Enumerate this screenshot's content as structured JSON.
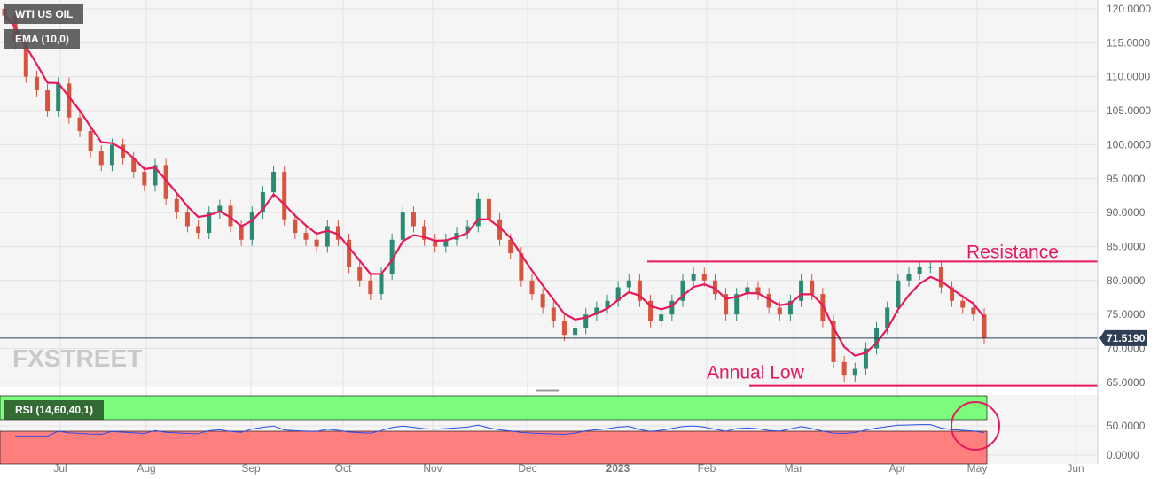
{
  "legend": {
    "symbol": "WTI US OIL",
    "ema": "EMA (10,0)",
    "rsi": "RSI (14,60,40,1)"
  },
  "watermark": "FXSTREET",
  "colors": {
    "up": "#2b8a72",
    "down": "#d9533f",
    "ema": "#e8195a",
    "rsi": "#2b4ee8",
    "annotation": "#e8195a",
    "overbought": "#7cfc7c",
    "oversold": "#ff7f7f"
  },
  "chart_data": {
    "type": "candlestick",
    "title": "WTI US OIL",
    "price_axis": {
      "ylim": [
        64,
        121
      ],
      "ticks": [
        "120.0000",
        "115.0000",
        "110.0000",
        "105.0000",
        "100.0000",
        "95.0000",
        "90.0000",
        "85.0000",
        "80.0000",
        "75.0000",
        "70.0000",
        "65.0000"
      ]
    },
    "rsi_axis": {
      "ylim": [
        0,
        100
      ],
      "ticks": [
        "50.0000",
        "0.0000"
      ],
      "upper": 60,
      "lower": 40
    },
    "x_ticks": [
      "Jul",
      "Aug",
      "Sep",
      "Oct",
      "Nov",
      "Dec",
      "2023",
      "Feb",
      "Mar",
      "Apr",
      "May",
      "Jun"
    ],
    "closes": [
      119,
      115,
      110,
      108,
      105,
      109,
      104,
      102,
      99,
      97,
      100,
      98,
      96,
      94,
      97,
      92,
      90,
      88,
      87,
      90,
      91,
      88,
      86,
      90,
      93,
      96,
      89,
      87,
      86,
      85,
      88,
      86,
      82,
      80,
      78,
      81,
      86,
      90,
      88,
      86,
      85,
      86,
      87,
      88,
      92,
      89,
      86,
      84,
      80,
      78,
      76,
      74,
      72,
      73,
      75,
      76,
      77,
      79,
      80,
      77,
      74,
      75,
      77,
      80,
      81,
      80,
      78,
      75,
      78,
      79,
      78,
      76,
      75,
      77,
      80,
      78,
      74,
      68,
      66,
      67,
      70,
      73,
      76,
      80,
      81,
      82,
      82,
      79,
      77,
      76,
      75,
      71.519
    ],
    "last_price": "71.5190",
    "annotations": [
      {
        "label": "Resistance",
        "price": 82.8
      },
      {
        "label": "Annual Low",
        "price": 64.5
      }
    ]
  }
}
